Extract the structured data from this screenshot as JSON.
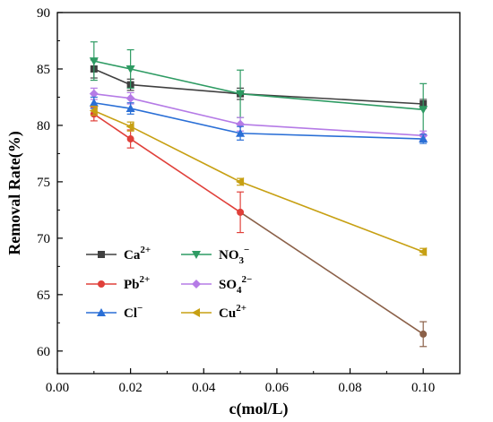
{
  "chart_data": {
    "type": "line",
    "xlabel": "c(mol/L)",
    "ylabel": "Removal Rate(%)",
    "xlim": [
      0.0,
      0.11
    ],
    "ylim": [
      58,
      90
    ],
    "x_ticks": [
      "0.00",
      "0.02",
      "0.04",
      "0.06",
      "0.08",
      "0.10"
    ],
    "y_ticks": [
      "60",
      "65",
      "70",
      "75",
      "80",
      "85",
      "90"
    ],
    "x": [
      0.01,
      0.02,
      0.05,
      0.1
    ],
    "legend_position": "bottom-left",
    "grid": false,
    "series": [
      {
        "name": "Ca",
        "sup": "2+",
        "sub": "",
        "color": "#404040",
        "marker": "square",
        "values": [
          85.0,
          83.6,
          82.8,
          81.9
        ],
        "errors": [
          0.8,
          0.5,
          0.5,
          0.4
        ]
      },
      {
        "name": "NO",
        "sup": "−",
        "sub": "3",
        "color": "#2e9b63",
        "marker": "triangle-down",
        "values": [
          85.7,
          85.0,
          82.8,
          81.4
        ],
        "errors": [
          1.7,
          1.7,
          2.1,
          2.3
        ]
      },
      {
        "name": "Pb",
        "sup": "2+",
        "sub": "",
        "color": "#e0403a",
        "marker": "circle",
        "values": [
          81.0,
          78.8,
          72.3,
          61.5
        ],
        "errors": [
          0.6,
          0.8,
          1.8,
          1.1
        ]
      },
      {
        "name": "SO",
        "sup": "2−",
        "sub": "4",
        "color": "#b57be6",
        "marker": "diamond",
        "values": [
          82.8,
          82.4,
          80.1,
          79.1
        ],
        "errors": [
          0.5,
          0.5,
          0.6,
          0.4
        ]
      },
      {
        "name": "Cl",
        "sup": "−",
        "sub": "",
        "color": "#2a6fd6",
        "marker": "triangle-up",
        "values": [
          82.0,
          81.5,
          79.3,
          78.8
        ],
        "errors": [
          0.5,
          0.5,
          0.6,
          0.4
        ]
      },
      {
        "name": "Cu",
        "sup": "2+",
        "sub": "",
        "color": "#c7a013",
        "marker": "triangle-left",
        "values": [
          81.3,
          79.9,
          75.0,
          68.8
        ],
        "errors": [
          0.4,
          0.4,
          0.3,
          0.3
        ]
      }
    ],
    "pb_late_color": "#8b6048"
  }
}
